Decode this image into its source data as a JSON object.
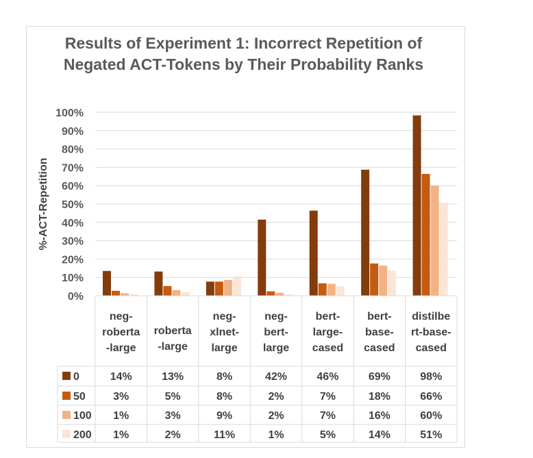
{
  "chart_data": {
    "type": "bar",
    "title": "Results of Experiment 1: Incorrect Repetition of Negated ACT-Tokens by Their Probability Ranks",
    "xlabel": "",
    "ylabel": "%-ACT-Repetition",
    "ylim": [
      0,
      100
    ],
    "yticks": [
      "0%",
      "10%",
      "20%",
      "30%",
      "40%",
      "50%",
      "60%",
      "70%",
      "80%",
      "90%",
      "100%"
    ],
    "grid": true,
    "legend_placement": "data-table-left",
    "categories": [
      [
        "neg-",
        "roberta",
        "-large"
      ],
      [
        "roberta",
        "-large"
      ],
      [
        "neg-",
        "xlnet-",
        "large"
      ],
      [
        "neg-",
        "bert-",
        "large"
      ],
      [
        "bert-",
        "large-",
        "cased"
      ],
      [
        "bert-",
        "base-",
        "cased"
      ],
      [
        "distilbe",
        "rt-base-",
        "cased"
      ]
    ],
    "series": [
      {
        "name": "0",
        "color": "#843C0C",
        "values": [
          13.5,
          13.2,
          7.7,
          41.5,
          46.4,
          68.7,
          98.3
        ],
        "labels": [
          "14%",
          "13%",
          "8%",
          "42%",
          "46%",
          "69%",
          "98%"
        ]
      },
      {
        "name": "50",
        "color": "#C55A11",
        "values": [
          2.7,
          5.3,
          7.7,
          2.4,
          6.8,
          17.6,
          66.4
        ],
        "labels": [
          "3%",
          "5%",
          "8%",
          "2%",
          "7%",
          "18%",
          "66%"
        ]
      },
      {
        "name": "100",
        "color": "#F4B183",
        "values": [
          1.4,
          3.1,
          8.6,
          1.6,
          6.5,
          16.4,
          60.0
        ],
        "labels": [
          "1%",
          "3%",
          "9%",
          "2%",
          "7%",
          "16%",
          "60%"
        ]
      },
      {
        "name": "200",
        "color": "#FBE5D6",
        "values": [
          0.8,
          2.0,
          10.6,
          0.7,
          5.2,
          13.7,
          50.7
        ],
        "labels": [
          "1%",
          "2%",
          "11%",
          "1%",
          "5%",
          "14%",
          "51%"
        ]
      }
    ]
  }
}
